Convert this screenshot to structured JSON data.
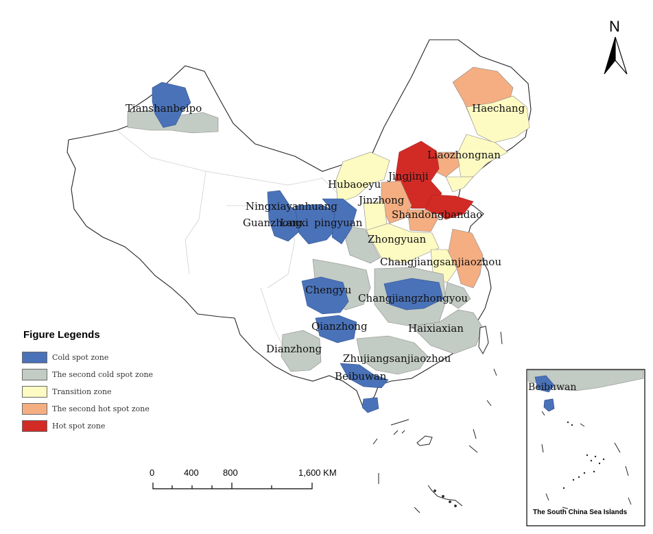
{
  "north_arrow": {
    "label": "N"
  },
  "legend": {
    "title": "Figure Legends",
    "items": [
      {
        "label": "Cold spot zone",
        "color": "#4a72b8"
      },
      {
        "label": "The second cold spot zone",
        "color": "#c2cbc4"
      },
      {
        "label": "Transition zone",
        "color": "#fdfbc2"
      },
      {
        "label": "The second hot spot zone",
        "color": "#f4ae82"
      },
      {
        "label": "Hot spot zone",
        "color": "#d22b26"
      }
    ]
  },
  "scale_bar": {
    "ticks": [
      "0",
      "400",
      "800",
      "1,600 KM"
    ]
  },
  "regions": {
    "tianshanbeipo": "Tianshanbeipo",
    "haechang": "Haechang",
    "liaozhongnan": "Liaozhongnan",
    "jingjinji": "Jingjinji",
    "hubaoeyu": "Hubaoeyu",
    "jinzhong": "Jinzhong",
    "shandongbandao": "Shandongbandao",
    "ningxiayanhuang": "Ningxiayanhuang",
    "guanzhong": "Guanzhong",
    "lanxi": "Lanxi",
    "pingyuan": "pingyuan",
    "zhongyuan": "Zhongyuan",
    "changjiangsanjiaozhou": "Changjiangsanjiaozhou",
    "chengyu": "Chengyu",
    "changjiangzhongyou": "Changjiangzhongyou",
    "qianzhong": "Qianzhong",
    "haixiaxian": "Haixiaxian",
    "dianzhong": "Dianzhong",
    "zhujiangsanjiaozhou": "Zhujiangsanjiaozhou",
    "beibuwan": "Beibuwan"
  },
  "inset": {
    "title": "The South China Sea Islands",
    "label": "Beibuwan"
  }
}
